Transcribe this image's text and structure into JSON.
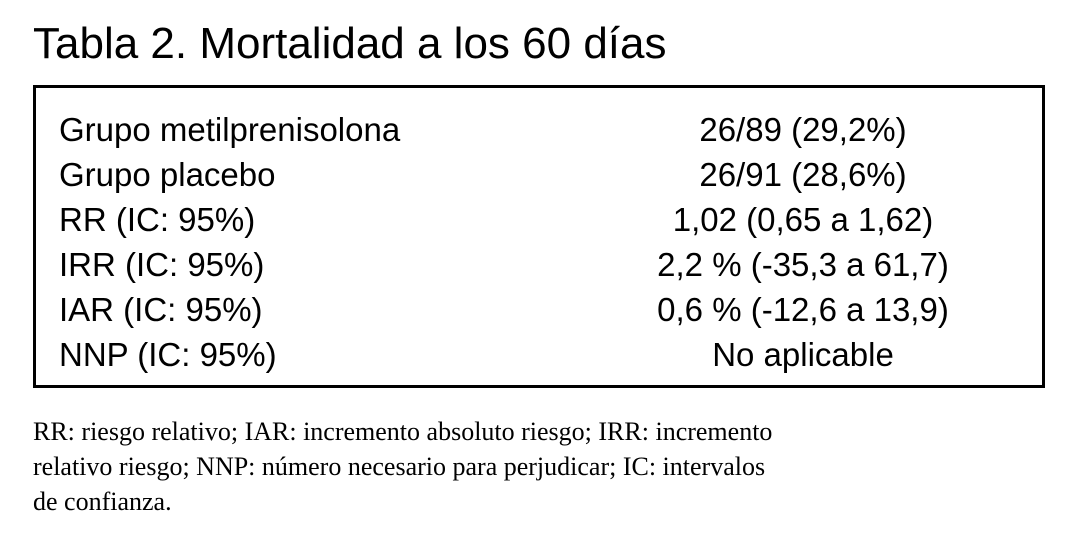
{
  "header": {
    "title": "Tabla 2. Mortalidad a los 60 días"
  },
  "table": {
    "rows": [
      [
        "Grupo metilprenisolona",
        "26/89 (29,2%)"
      ],
      [
        "Grupo placebo",
        "26/91 (28,6%)"
      ],
      [
        "RR (IC: 95%)",
        "1,02 (0,65 a 1,62)"
      ],
      [
        "IRR (IC: 95%)",
        "2,2 % (-35,3 a 61,7)"
      ],
      [
        "IAR (IC: 95%)",
        "0,6 % (-12,6 a 13,9)"
      ],
      [
        "NNP (IC: 95%)",
        "No aplicable"
      ]
    ]
  },
  "footnote": {
    "lines": [
      "RR: riesgo relativo; IAR: incremento absoluto riesgo; IRR: incremento",
      "relativo riesgo; NNP: número necesario para perjudicar; IC: intervalos",
      "de confianza."
    ]
  }
}
